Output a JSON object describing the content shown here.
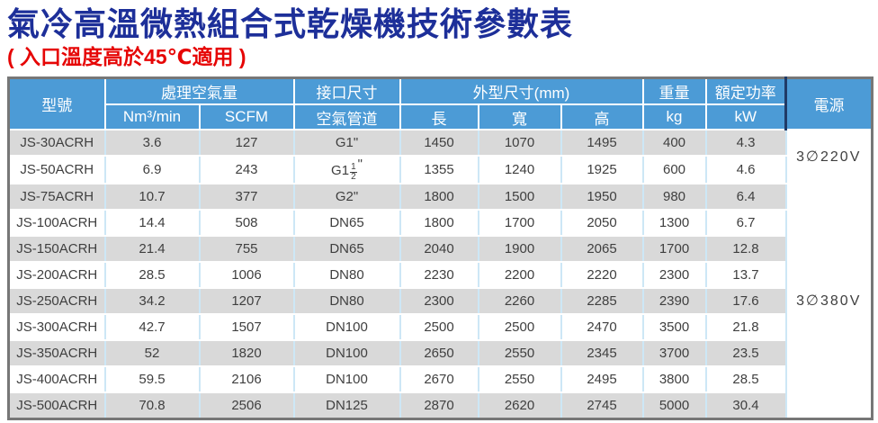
{
  "page": {
    "title": "氣冷高溫微熱組合式乾燥機技術參數表",
    "subtitle": "( 入口溫度高於45℃適用 )"
  },
  "colors": {
    "title_text": "#1d2f99",
    "subtitle_text": "#e60505",
    "header_bg": "#4c9bd6",
    "header_text": "#ffffff",
    "row_alt_bg": "#d9d9d9",
    "cell_text": "#3f3f3f",
    "outer_border": "#777777",
    "cell_divider": "#cde7f6",
    "supply_divider": "#203a66"
  },
  "table": {
    "header": {
      "model": "型號",
      "air_flow_group": "處理空氣量",
      "air_flow_units": [
        "Nm³/min",
        "SCFM"
      ],
      "connection_group": "接口尺寸",
      "connection_sub": "空氣管道",
      "dimensions_group": "外型尺寸(mm)",
      "dimensions_sub": [
        "長",
        "寬",
        "高"
      ],
      "weight_group": "重量",
      "weight_unit": "kg",
      "power_group": "額定功率",
      "power_unit": "kW",
      "supply": "電源"
    },
    "rows": [
      [
        "JS-30ACRH",
        "3.6",
        "127",
        "G1\"",
        "1450",
        "1070",
        "1495",
        "400",
        "4.3"
      ],
      [
        "JS-50ACRH",
        "6.9",
        "243",
        "G1½\"",
        "1355",
        "1240",
        "1925",
        "600",
        "4.6"
      ],
      [
        "JS-75ACRH",
        "10.7",
        "377",
        "G2\"",
        "1800",
        "1500",
        "1950",
        "980",
        "6.4"
      ],
      [
        "JS-100ACRH",
        "14.4",
        "508",
        "DN65",
        "1800",
        "1700",
        "2050",
        "1300",
        "6.7"
      ],
      [
        "JS-150ACRH",
        "21.4",
        "755",
        "DN65",
        "2040",
        "1900",
        "2065",
        "1700",
        "12.8"
      ],
      [
        "JS-200ACRH",
        "28.5",
        "1006",
        "DN80",
        "2230",
        "2200",
        "2220",
        "2300",
        "13.7"
      ],
      [
        "JS-250ACRH",
        "34.2",
        "1207",
        "DN80",
        "2300",
        "2260",
        "2285",
        "2390",
        "17.6"
      ],
      [
        "JS-300ACRH",
        "42.7",
        "1507",
        "DN100",
        "2500",
        "2500",
        "2470",
        "3500",
        "21.8"
      ],
      [
        "JS-350ACRH",
        "52",
        "1820",
        "DN100",
        "2650",
        "2550",
        "2345",
        "3700",
        "23.5"
      ],
      [
        "JS-400ACRH",
        "59.5",
        "2106",
        "DN100",
        "2670",
        "2550",
        "2495",
        "3800",
        "28.5"
      ],
      [
        "JS-500ACRH",
        "70.8",
        "2506",
        "DN125",
        "2870",
        "2620",
        "2745",
        "5000",
        "30.4"
      ]
    ],
    "power_supply": [
      {
        "label": "3∅220V",
        "row_start": 0,
        "row_span": 2
      },
      {
        "label": "3∅380V",
        "row_start": 2,
        "row_span": 9
      }
    ]
  }
}
